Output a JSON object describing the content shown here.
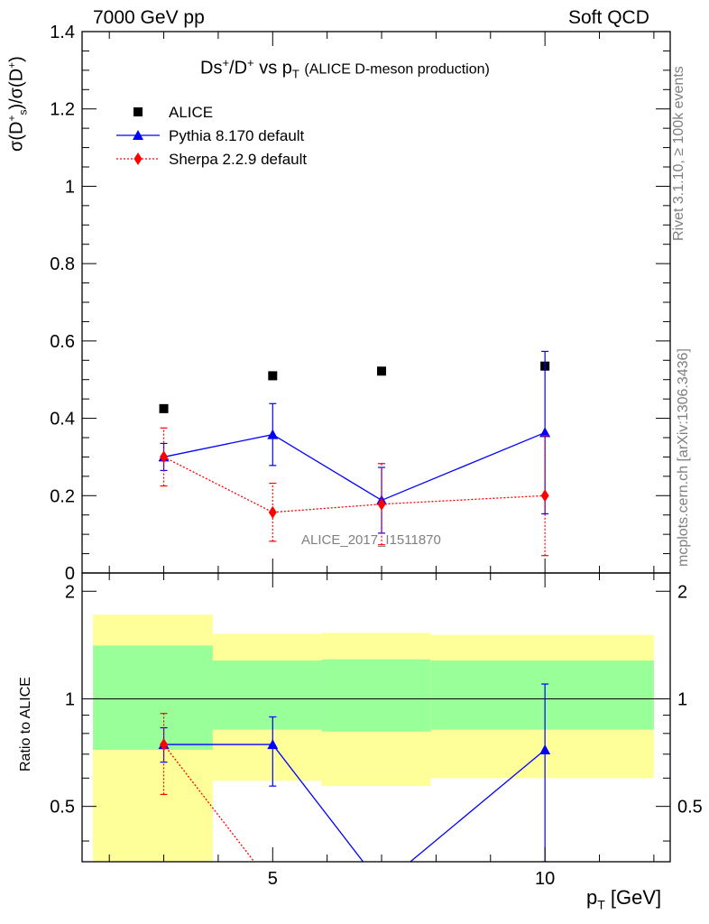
{
  "header": {
    "left": "7000 GeV pp",
    "right": "Soft QCD"
  },
  "side_labels": {
    "rivet": "Rivet 3.1.10, ≥ 100k events",
    "mcplots": "mcplots.cern.ch [arXiv:1306.3436]"
  },
  "chart_data": [
    {
      "type": "scatter",
      "title": {
        "main": "Ds",
        "sup1": "+",
        "mid": "/D",
        "sup2": "+",
        "vs": " vs p",
        "sub": "T",
        "note": "(ALICE D-meson production)"
      },
      "ylabel": "σ(D_s^+)/σ(D^+)",
      "xlabel": "",
      "analysis_label": "ALICE_2017_I1511870",
      "xlim": [
        1.5,
        12.3
      ],
      "ylim": [
        0,
        1.4
      ],
      "y_ticks": [
        0,
        0.2,
        0.4,
        0.6,
        0.8,
        1,
        1.2,
        1.4
      ],
      "y_tick_labels": [
        "0",
        "0.2",
        "0.4",
        "0.6",
        "0.8",
        "1",
        "1.2",
        "1.4"
      ],
      "legend_position": "top-left",
      "series": [
        {
          "name": "ALICE",
          "color": "#000000",
          "marker": "square",
          "x": [
            3,
            5,
            7,
            10
          ],
          "y": [
            0.425,
            0.51,
            0.522,
            0.535
          ],
          "yerr": [
            0,
            0,
            0,
            0
          ]
        },
        {
          "name": "Pythia 8.170 default",
          "color": "#0000ff",
          "marker": "triangle",
          "line": "solid",
          "x": [
            3,
            5,
            7,
            10
          ],
          "y": [
            0.3,
            0.358,
            0.188,
            0.363
          ],
          "yerr": [
            0.035,
            0.08,
            0.085,
            0.21
          ]
        },
        {
          "name": "Sherpa 2.2.9 default",
          "color": "#ff0000",
          "marker": "diamond",
          "line": "dotted",
          "x": [
            3,
            5,
            7,
            10
          ],
          "y": [
            0.3,
            0.157,
            0.178,
            0.2
          ],
          "yerr": [
            0.075,
            0.075,
            0.105,
            0.155
          ]
        }
      ]
    },
    {
      "type": "scatter",
      "ylabel": "Ratio to ALICE",
      "xlabel": "p_T [GeV]",
      "xlim": [
        1.5,
        12.3
      ],
      "ylim": [
        0.35,
        2.25
      ],
      "x_ticks": [
        5,
        10
      ],
      "x_tick_labels": [
        "5",
        "10"
      ],
      "y_ticks": [
        0.5,
        1,
        2
      ],
      "y_tick_labels": [
        "0.5",
        "1",
        "2"
      ],
      "reference_line": 1,
      "bands": [
        {
          "xlo": 1.7,
          "xhi": 3.9,
          "inner": [
            0.72,
            1.41
          ],
          "outer": [
            0.35,
            1.72
          ]
        },
        {
          "xlo": 3.9,
          "xhi": 5.9,
          "inner": [
            0.82,
            1.28
          ],
          "outer": [
            0.59,
            1.52
          ]
        },
        {
          "xlo": 5.9,
          "xhi": 7.9,
          "inner": [
            0.81,
            1.29
          ],
          "outer": [
            0.57,
            1.53
          ]
        },
        {
          "xlo": 7.9,
          "xhi": 12.0,
          "inner": [
            0.82,
            1.28
          ],
          "outer": [
            0.6,
            1.51
          ]
        }
      ],
      "series": [
        {
          "name": "Pythia 8.170 default",
          "color": "#0000ff",
          "marker": "triangle",
          "line": "solid",
          "x": [
            3,
            5,
            7,
            10
          ],
          "y": [
            0.745,
            0.745,
            0.3,
            0.72
          ],
          "ylo": [
            0.665,
            0.57,
            0.3,
            0.35
          ],
          "yhi": [
            0.83,
            0.89,
            0.3,
            1.1
          ],
          "markers": [
            true,
            true,
            false,
            true
          ]
        },
        {
          "name": "Sherpa 2.2.9 default",
          "color": "#ff0000",
          "marker": "diamond",
          "line": "dotted",
          "x": [
            3,
            5
          ],
          "y": [
            0.745,
            0.3
          ],
          "ylo": [
            0.54,
            0.3
          ],
          "yhi": [
            0.91,
            0.3
          ],
          "markers": [
            true,
            false
          ]
        }
      ]
    }
  ]
}
